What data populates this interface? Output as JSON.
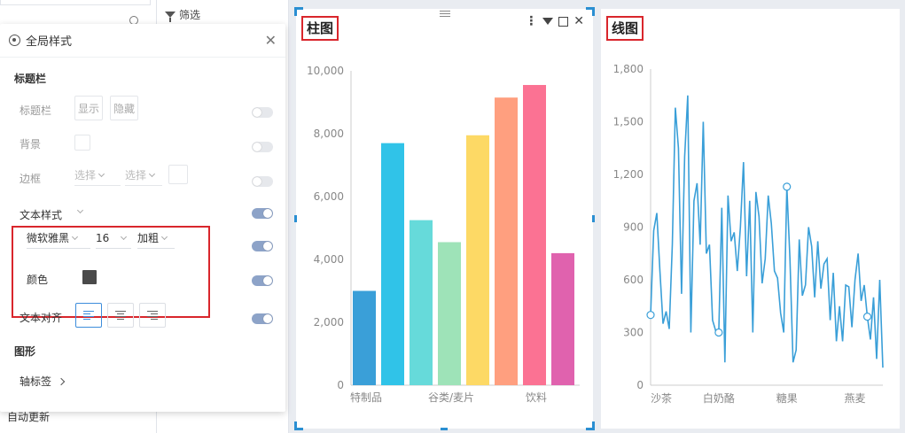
{
  "left": {
    "filter_label": "筛选",
    "auto_update": "自动更新"
  },
  "panel": {
    "title": "全局样式",
    "title_bar_section": "标题栏",
    "title_bar_label": "标题栏",
    "show_btn": "显示",
    "hide_btn": "隐藏",
    "background_label": "背景",
    "border_label": "边框",
    "border_select1": "选择",
    "border_select2": "选择",
    "text_style_label": "文本样式",
    "font_family": "微软雅黑",
    "font_size": "16",
    "font_weight": "加粗",
    "color_label": "颜色",
    "color_value": "#4a4a4a",
    "text_align_label": "文本对齐",
    "graphic_section": "图形",
    "axis_label": "轴标签",
    "toggles": [
      false,
      false,
      false,
      true,
      true,
      true,
      true
    ]
  },
  "bar_widget": {
    "title": "柱图",
    "chart_data": {
      "type": "bar",
      "categories": [
        "特制品",
        "",
        "",
        "谷类/麦片",
        "",
        "",
        "饮料",
        ""
      ],
      "values": [
        3000,
        7700,
        5250,
        4550,
        7950,
        9150,
        9550,
        4200
      ],
      "colors": [
        "#3a9fd8",
        "#30c3e8",
        "#66dada",
        "#9ee3b8",
        "#fdd965",
        "#ff9f7f",
        "#fb7293",
        "#e062ae"
      ],
      "ylim": [
        0,
        10000
      ],
      "yticks": [
        "0",
        "2,000",
        "4,000",
        "6,000",
        "8,000",
        "10,000"
      ]
    }
  },
  "line_widget": {
    "title": "线图",
    "chart_data": {
      "type": "line",
      "x_labels": [
        "沙茶",
        "白奶酪",
        "糖果",
        "燕麦"
      ],
      "ylim": [
        0,
        1800
      ],
      "yticks": [
        "0",
        "300",
        "600",
        "900",
        "1,200",
        "1,500",
        "1,800"
      ],
      "color": "#3a9fd8",
      "values": [
        400,
        880,
        980,
        650,
        350,
        420,
        320,
        800,
        1580,
        1350,
        520,
        1300,
        1650,
        300,
        1050,
        1150,
        800,
        1500,
        750,
        800,
        370,
        310,
        300,
        1010,
        130,
        1080,
        820,
        870,
        650,
        900,
        1270,
        620,
        1050,
        300,
        1100,
        960,
        580,
        720,
        1080,
        920,
        650,
        610,
        410,
        300,
        1130,
        720,
        130,
        200,
        830,
        510,
        570,
        900,
        790,
        500,
        820,
        550,
        690,
        720,
        370,
        640,
        250,
        450,
        250,
        570,
        560,
        330,
        600,
        750,
        480,
        570,
        390,
        260,
        500,
        150,
        600,
        100
      ],
      "markers": [
        0,
        22,
        44,
        70
      ]
    }
  }
}
